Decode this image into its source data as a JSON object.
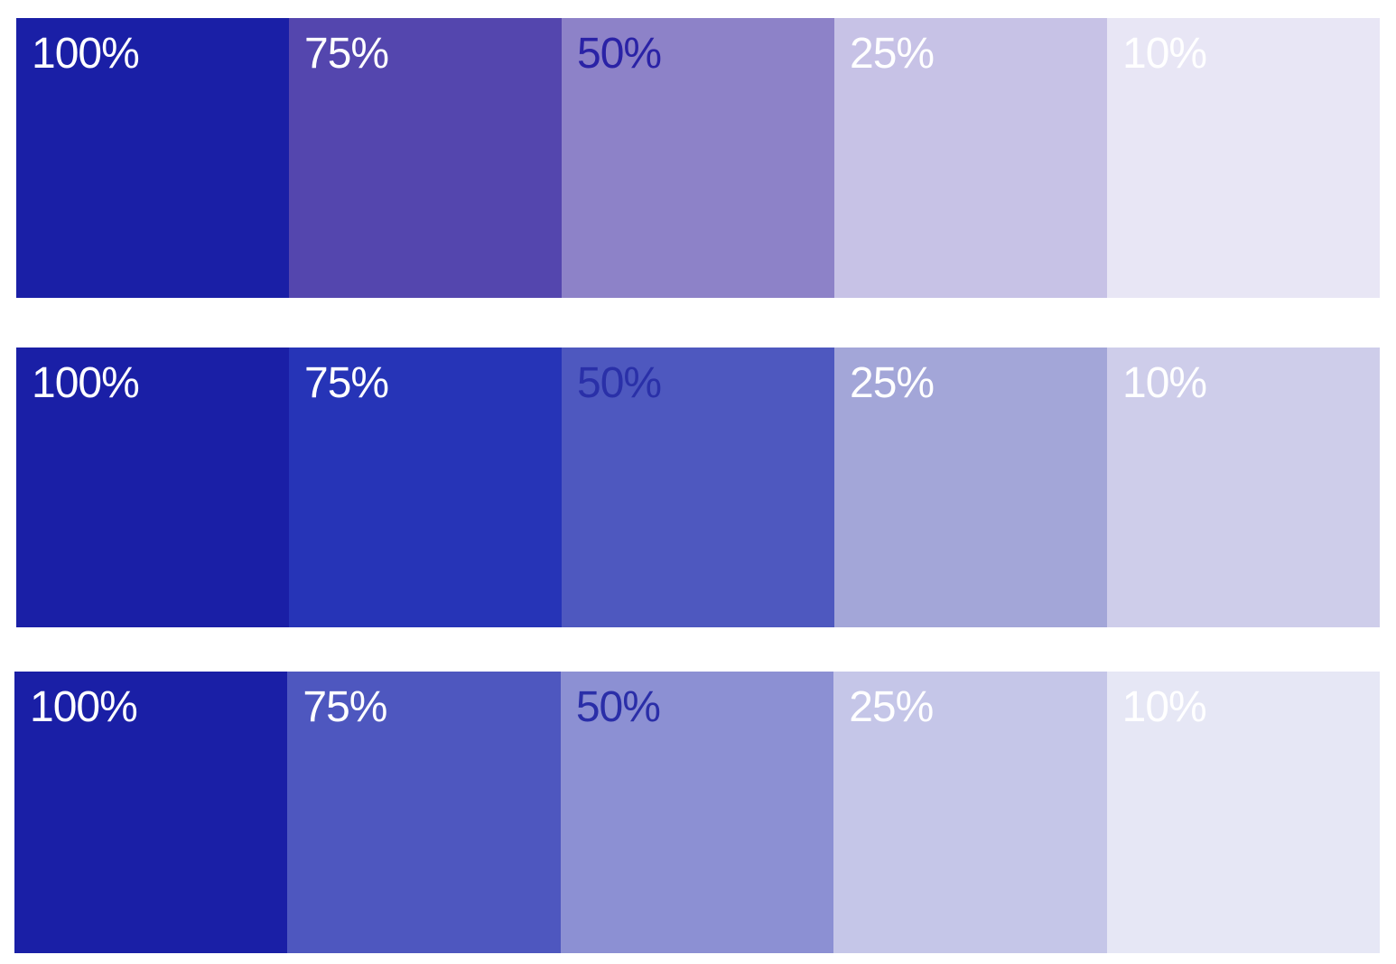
{
  "rows": [
    {
      "swatches": [
        {
          "label": "100%",
          "bg": "#1a1fa6",
          "fg": "#ffffff"
        },
        {
          "label": "75%",
          "bg": "#5446ae",
          "fg": "#ffffff"
        },
        {
          "label": "50%",
          "bg": "#8d82c8",
          "fg": "#2a22a6"
        },
        {
          "label": "25%",
          "bg": "#c7c2e6",
          "fg": "#ffffff"
        },
        {
          "label": "10%",
          "bg": "#e8e6f5",
          "fg": "#ffffff"
        }
      ]
    },
    {
      "swatches": [
        {
          "label": "100%",
          "bg": "#1a1fa6",
          "fg": "#ffffff"
        },
        {
          "label": "75%",
          "bg": "#2634b7",
          "fg": "#ffffff"
        },
        {
          "label": "50%",
          "bg": "#4e58bf",
          "fg": "#2a30a8"
        },
        {
          "label": "25%",
          "bg": "#a3a6d8",
          "fg": "#ffffff"
        },
        {
          "label": "10%",
          "bg": "#cecdea",
          "fg": "#ffffff"
        }
      ]
    },
    {
      "swatches": [
        {
          "label": "100%",
          "bg": "#1a1fa6",
          "fg": "#ffffff"
        },
        {
          "label": "75%",
          "bg": "#4e57bf",
          "fg": "#ffffff"
        },
        {
          "label": "50%",
          "bg": "#8c90d3",
          "fg": "#2a2ea8"
        },
        {
          "label": "25%",
          "bg": "#c5c6e8",
          "fg": "#ffffff"
        },
        {
          "label": "10%",
          "bg": "#e6e7f5",
          "fg": "#ffffff"
        }
      ]
    }
  ]
}
